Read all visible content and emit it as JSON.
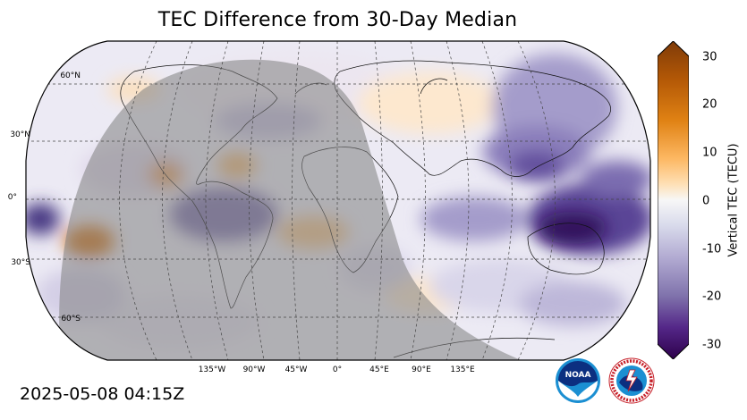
{
  "title": "TEC Difference from 30-Day Median",
  "timestamp": "2025-05-08 04:15Z",
  "map": {
    "projection": "robinson",
    "night_shading": true,
    "lat_labels": [
      "60°N",
      "30°N",
      "0°",
      "30°S",
      "60°S"
    ],
    "lon_labels": [
      "135°W",
      "90°W",
      "45°W",
      "0°",
      "45°E",
      "90°E",
      "135°E"
    ]
  },
  "colorbar": {
    "label": "Vertical TEC (TECU)",
    "ticks": [
      "30",
      "20",
      "10",
      "0",
      "-10",
      "-20",
      "-30"
    ],
    "min": -30,
    "max": 30,
    "colormap": "PuOr_r"
  },
  "logos": {
    "noaa": "NOAA",
    "nws": "NATIONAL WEATHER SERVICE"
  }
}
